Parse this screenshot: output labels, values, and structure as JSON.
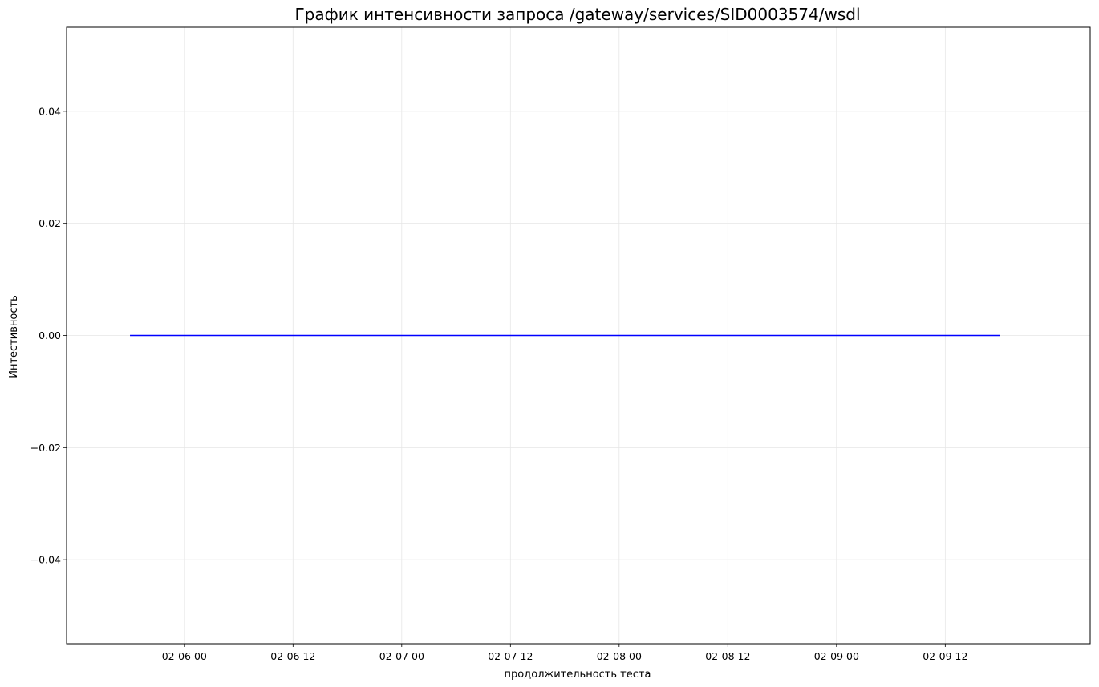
{
  "chart_data": {
    "type": "line",
    "title": "График интенсивности запроса /gateway/services/SID0003574/wsdl",
    "xlabel": "продолжительность теста",
    "ylabel": "Интестивность",
    "x": [
      "2024-02-05 18:00",
      "2024-02-09 18:00"
    ],
    "series": [
      {
        "values": [
          0,
          0
        ],
        "color": "#0000ff"
      }
    ],
    "x_ticks": [
      {
        "value": "2024-02-06 00:00",
        "label": "02-06 00"
      },
      {
        "value": "2024-02-06 12:00",
        "label": "02-06 12"
      },
      {
        "value": "2024-02-07 00:00",
        "label": "02-07 00"
      },
      {
        "value": "2024-02-07 12:00",
        "label": "02-07 12"
      },
      {
        "value": "2024-02-08 00:00",
        "label": "02-08 00"
      },
      {
        "value": "2024-02-08 12:00",
        "label": "02-08 12"
      },
      {
        "value": "2024-02-09 00:00",
        "label": "02-09 00"
      },
      {
        "value": "2024-02-09 12:00",
        "label": "02-09 12"
      }
    ],
    "y_ticks": [
      {
        "value": 0.04,
        "label": "0.04"
      },
      {
        "value": 0.02,
        "label": "0.02"
      },
      {
        "value": 0.0,
        "label": "0.00"
      },
      {
        "value": -0.02,
        "label": "−0.02"
      },
      {
        "value": -0.04,
        "label": "−0.04"
      }
    ],
    "xlim": [
      "2024-02-05 11:00",
      "2024-02-10 04:00"
    ],
    "ylim": [
      -0.055,
      0.055
    ],
    "grid": true,
    "legend": "none"
  }
}
